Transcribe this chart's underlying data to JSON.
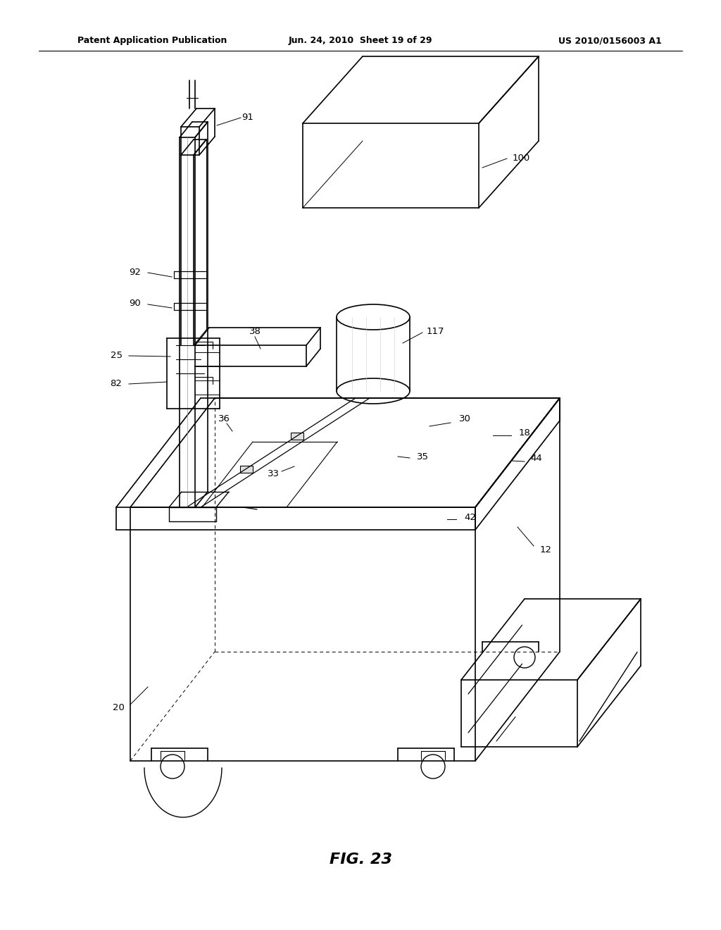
{
  "background_color": "#ffffff",
  "line_color": "#000000",
  "header_left": "Patent Application Publication",
  "header_center": "Jun. 24, 2010  Sheet 19 of 29",
  "header_right": "US 2010/0156003 A1",
  "figure_label": "FIG. 23"
}
